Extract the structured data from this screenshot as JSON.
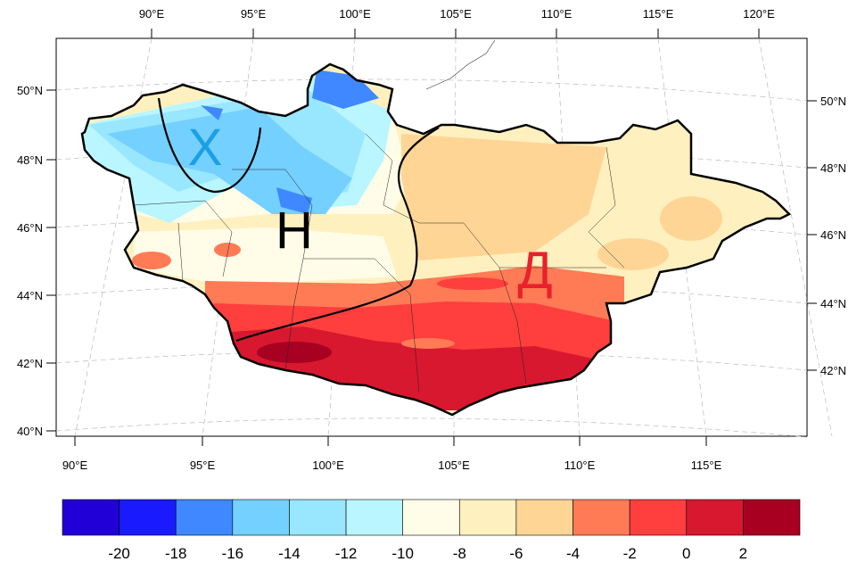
{
  "map": {
    "top_lon_ticks": [
      "90°E",
      "95°E",
      "100°E",
      "105°E",
      "110°E",
      "115°E",
      "120°E"
    ],
    "bottom_lon_ticks": [
      "90°E",
      "95°E",
      "100°E",
      "105°E",
      "110°E",
      "115°E"
    ],
    "left_lat_ticks": [
      "50°N",
      "48°N",
      "46°N",
      "44°N",
      "42°N",
      "40°N"
    ],
    "right_lat_ticks": [
      "50°N",
      "48°N",
      "46°N",
      "44°N",
      "42°N"
    ],
    "region_labels": [
      {
        "text": "Х",
        "color": "#1c9fe4"
      },
      {
        "text": "Н",
        "color": "#000000"
      },
      {
        "text": "Д",
        "color": "#e8212b"
      }
    ]
  },
  "colorbar": {
    "labels": [
      "-20",
      "-18",
      "-16",
      "-14",
      "-12",
      "-10",
      "-8",
      "-6",
      "-4",
      "-2",
      "0",
      "2"
    ],
    "colors": [
      "#2100d8",
      "#1a1aff",
      "#3f88ff",
      "#74d0ff",
      "#99e6ff",
      "#b9f6ff",
      "#fffde8",
      "#fff0bf",
      "#ffd596",
      "#ff7b55",
      "#ff3e3e",
      "#d8182f",
      "#a70021"
    ]
  }
}
